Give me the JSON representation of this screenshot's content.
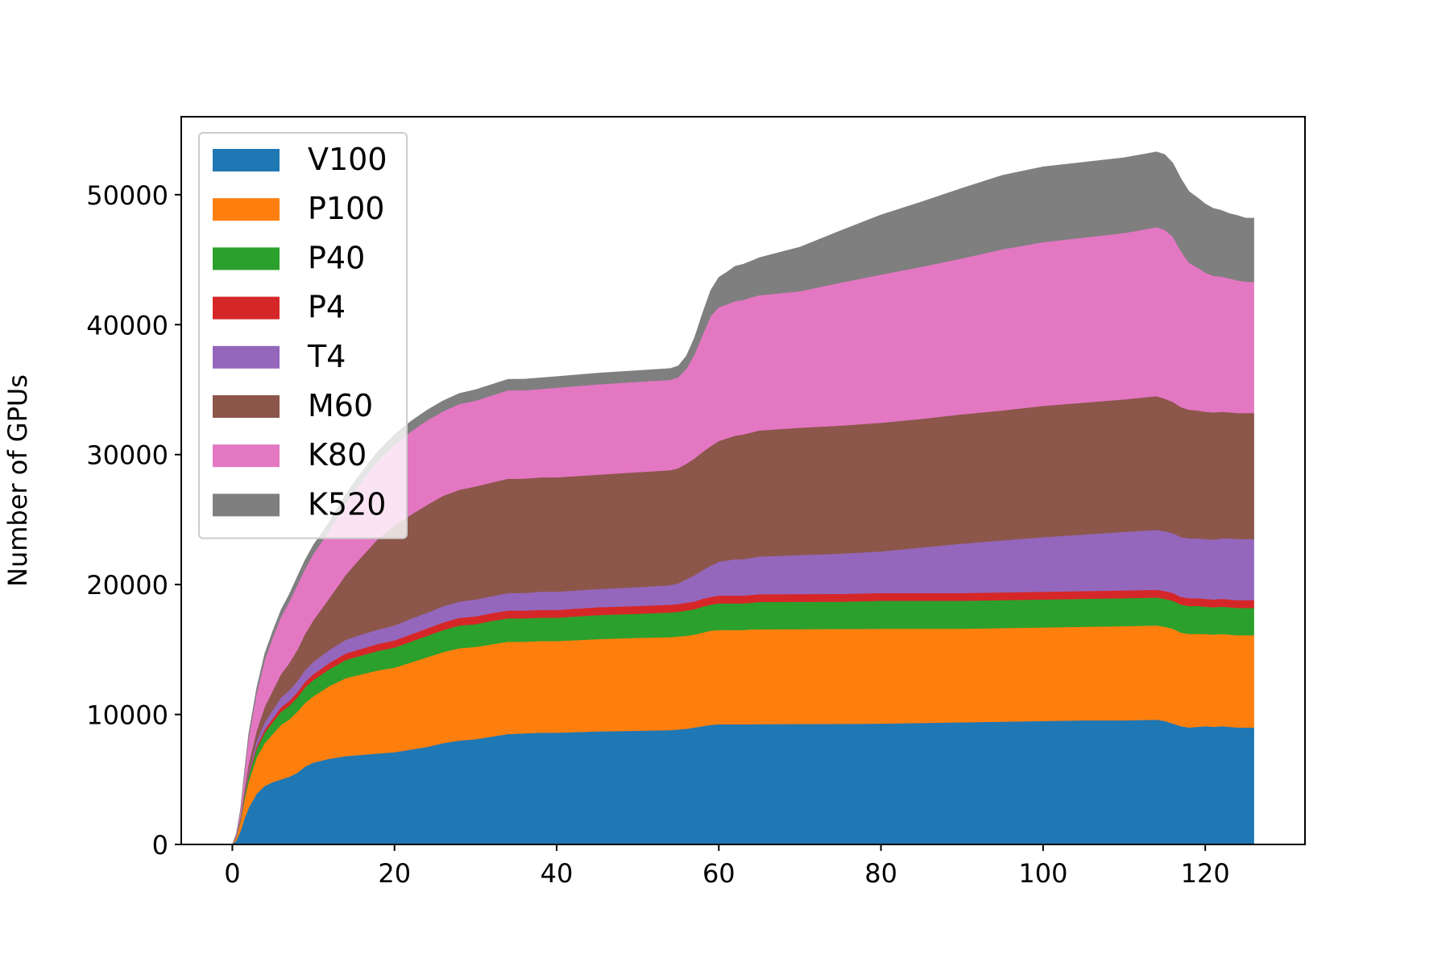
{
  "chart_data": {
    "type": "area",
    "stacked": true,
    "title": "",
    "xlabel": "",
    "ylabel": "Number of GPUs",
    "xlim": [
      -6.3,
      132.3
    ],
    "ylim": [
      0,
      56000
    ],
    "xticks": [
      0,
      20,
      40,
      60,
      80,
      100,
      120
    ],
    "yticks": [
      0,
      10000,
      20000,
      30000,
      40000,
      50000
    ],
    "grid": false,
    "legend_position": "top-left",
    "x": [
      0,
      0.5,
      1,
      1.5,
      2,
      3,
      4,
      5,
      6,
      7,
      8,
      9,
      10,
      12,
      14,
      16,
      18,
      20,
      22,
      24,
      26,
      28,
      30,
      32,
      34,
      36,
      38,
      40,
      45,
      50,
      54,
      55,
      56,
      57,
      58,
      59,
      60,
      61,
      62,
      63,
      64,
      65,
      70,
      75,
      80,
      85,
      90,
      95,
      100,
      105,
      110,
      114,
      115,
      116,
      117,
      118,
      119,
      120,
      121,
      122,
      123,
      124,
      125,
      126
    ],
    "series": [
      {
        "name": "V100",
        "color": "#1f77b4",
        "values": [
          0,
          300,
          1000,
          2000,
          2800,
          3900,
          4500,
          4800,
          5000,
          5200,
          5500,
          6000,
          6300,
          6600,
          6800,
          6900,
          7000,
          7100,
          7300,
          7500,
          7800,
          8000,
          8100,
          8300,
          8500,
          8550,
          8600,
          8600,
          8700,
          8750,
          8800,
          8850,
          8900,
          9000,
          9100,
          9200,
          9250,
          9250,
          9250,
          9250,
          9250,
          9260,
          9270,
          9280,
          9300,
          9350,
          9400,
          9450,
          9500,
          9550,
          9550,
          9600,
          9500,
          9300,
          9100,
          9000,
          9050,
          9100,
          9050,
          9100,
          9050,
          9000,
          9000,
          9000
        ]
      },
      {
        "name": "P100",
        "color": "#ff7f0e",
        "values": [
          0,
          250,
          700,
          1400,
          2000,
          2800,
          3300,
          3700,
          4200,
          4400,
          4700,
          4900,
          5100,
          5600,
          6000,
          6200,
          6400,
          6500,
          6700,
          6900,
          7000,
          7100,
          7100,
          7100,
          7100,
          7050,
          7050,
          7050,
          7100,
          7150,
          7150,
          7150,
          7150,
          7150,
          7200,
          7250,
          7250,
          7250,
          7250,
          7250,
          7300,
          7300,
          7300,
          7300,
          7300,
          7250,
          7200,
          7200,
          7200,
          7200,
          7250,
          7250,
          7250,
          7300,
          7200,
          7200,
          7150,
          7100,
          7100,
          7100,
          7100,
          7100,
          7100,
          7100
        ]
      },
      {
        "name": "P40",
        "color": "#2ca02c",
        "values": [
          0,
          50,
          150,
          300,
          450,
          650,
          800,
          900,
          1000,
          1050,
          1100,
          1200,
          1250,
          1300,
          1400,
          1450,
          1500,
          1550,
          1600,
          1650,
          1700,
          1750,
          1750,
          1800,
          1800,
          1800,
          1800,
          1800,
          1850,
          1850,
          1900,
          1900,
          1950,
          1950,
          2000,
          2000,
          2050,
          2050,
          2050,
          2050,
          2050,
          2100,
          2100,
          2100,
          2150,
          2150,
          2150,
          2150,
          2150,
          2150,
          2150,
          2150,
          2150,
          2150,
          2150,
          2150,
          2150,
          2100,
          2100,
          2100,
          2100,
          2100,
          2100,
          2100
        ]
      },
      {
        "name": "P4",
        "color": "#d62728",
        "values": [
          0,
          20,
          50,
          100,
          150,
          200,
          250,
          300,
          350,
          380,
          400,
          430,
          450,
          480,
          500,
          520,
          540,
          550,
          560,
          570,
          580,
          590,
          600,
          600,
          600,
          600,
          600,
          600,
          600,
          600,
          600,
          600,
          600,
          600,
          600,
          600,
          600,
          600,
          600,
          600,
          600,
          600,
          600,
          600,
          600,
          600,
          600,
          600,
          600,
          600,
          600,
          600,
          600,
          600,
          600,
          600,
          600,
          600,
          600,
          600,
          600,
          600,
          600,
          600
        ]
      },
      {
        "name": "T4",
        "color": "#9467bd",
        "values": [
          0,
          30,
          80,
          150,
          250,
          400,
          550,
          650,
          750,
          800,
          850,
          900,
          950,
          1000,
          1050,
          1100,
          1100,
          1150,
          1200,
          1200,
          1250,
          1250,
          1300,
          1300,
          1350,
          1350,
          1400,
          1400,
          1400,
          1450,
          1500,
          1600,
          1800,
          2000,
          2200,
          2400,
          2600,
          2700,
          2800,
          2800,
          2850,
          2900,
          3000,
          3100,
          3200,
          3500,
          3800,
          4000,
          4200,
          4350,
          4500,
          4600,
          4600,
          4600,
          4600,
          4600,
          4600,
          4600,
          4600,
          4650,
          4700,
          4700,
          4700,
          4700
        ]
      },
      {
        "name": "M60",
        "color": "#8c564b",
        "values": [
          0,
          30,
          100,
          300,
          500,
          800,
          1200,
          1500,
          1800,
          2100,
          2400,
          2800,
          3200,
          4000,
          5000,
          6000,
          7000,
          7700,
          8000,
          8300,
          8500,
          8600,
          8700,
          8750,
          8800,
          8800,
          8800,
          8800,
          8800,
          8850,
          8850,
          8850,
          8900,
          9000,
          9100,
          9200,
          9300,
          9400,
          9500,
          9600,
          9650,
          9700,
          9800,
          9850,
          9900,
          9900,
          9950,
          10000,
          10100,
          10150,
          10200,
          10300,
          10200,
          10100,
          10000,
          9900,
          9850,
          9800,
          9800,
          9750,
          9700,
          9700,
          9700,
          9700
        ]
      },
      {
        "name": "K80",
        "color": "#e377c2",
        "values": [
          0,
          150,
          500,
          1200,
          2000,
          2900,
          3600,
          4100,
          4400,
          4700,
          5000,
          5000,
          5100,
          5200,
          5500,
          5800,
          6000,
          6200,
          6400,
          6500,
          6500,
          6600,
          6600,
          6700,
          6800,
          6800,
          6800,
          6900,
          6950,
          6950,
          6950,
          7000,
          7300,
          8000,
          9000,
          10000,
          10300,
          10300,
          10350,
          10350,
          10400,
          10400,
          10500,
          11000,
          11400,
          11700,
          12000,
          12400,
          12600,
          12700,
          12800,
          13000,
          13000,
          12700,
          12000,
          11300,
          11000,
          10700,
          10500,
          10400,
          10300,
          10200,
          10100,
          10100
        ]
      },
      {
        "name": "K520",
        "color": "#7f7f7f",
        "values": [
          0,
          30,
          100,
          200,
          300,
          400,
          500,
          500,
          550,
          600,
          650,
          700,
          700,
          700,
          720,
          750,
          750,
          800,
          800,
          800,
          820,
          820,
          850,
          850,
          850,
          860,
          860,
          860,
          870,
          870,
          880,
          880,
          1000,
          1300,
          1700,
          2000,
          2300,
          2500,
          2700,
          2750,
          2800,
          2900,
          3400,
          4000,
          4600,
          5000,
          5400,
          5700,
          5800,
          5800,
          5800,
          5800,
          5800,
          5700,
          5600,
          5500,
          5400,
          5300,
          5200,
          5100,
          5000,
          5000,
          4900,
          4900
        ]
      }
    ]
  }
}
